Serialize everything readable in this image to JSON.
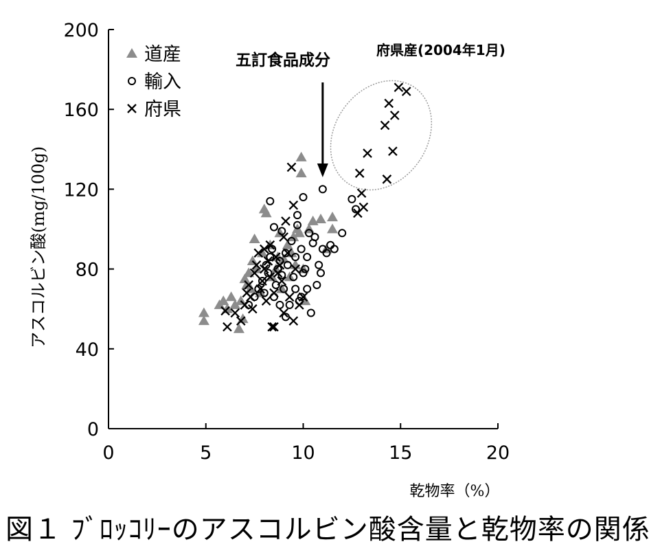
{
  "caption": "図１ ﾌﾞﾛｯｺﾘｰのアスコルビン酸含量と乾物率の関係",
  "annotations": {
    "arrow_label": "五訂食品成分",
    "ellipse_label": "府県産(2004年1月)"
  },
  "colors": {
    "axis": "#000000",
    "hokkaido_marker": "#8c8c8c",
    "import_marker": "#000000",
    "prefecture_marker": "#000000",
    "ellipse": "#999999"
  },
  "chart_data": {
    "type": "scatter",
    "xlabel": "乾物率（%）",
    "ylabel": "アスコルビン酸(mg/100g)",
    "xlim": [
      0,
      20
    ],
    "ylim": [
      0,
      200
    ],
    "xticks": [
      0,
      5,
      10,
      15,
      20
    ],
    "yticks": [
      0,
      40,
      80,
      120,
      160,
      200
    ],
    "grid": false,
    "legend_position": "top-left",
    "annotation_arrow_x": 11,
    "series": [
      {
        "name": "道産",
        "marker": "triangle",
        "points": [
          [
            4.9,
            58
          ],
          [
            4.9,
            54
          ],
          [
            5.7,
            62
          ],
          [
            5.9,
            64
          ],
          [
            6.1,
            60
          ],
          [
            6.3,
            66
          ],
          [
            6.5,
            62
          ],
          [
            6.7,
            50
          ],
          [
            6.9,
            55
          ],
          [
            6.8,
            64
          ],
          [
            7.0,
            75
          ],
          [
            7.1,
            72
          ],
          [
            7.2,
            78
          ],
          [
            7.4,
            84
          ],
          [
            7.5,
            95
          ],
          [
            7.6,
            80
          ],
          [
            7.8,
            68
          ],
          [
            7.9,
            88
          ],
          [
            8.0,
            110
          ],
          [
            8.1,
            108
          ],
          [
            8.3,
            92
          ],
          [
            8.4,
            76
          ],
          [
            8.6,
            80
          ],
          [
            8.8,
            98
          ],
          [
            9.0,
            85
          ],
          [
            9.2,
            92
          ],
          [
            9.4,
            88
          ],
          [
            9.5,
            96
          ],
          [
            9.6,
            82
          ],
          [
            9.7,
            100
          ],
          [
            9.8,
            98
          ],
          [
            9.9,
            136
          ],
          [
            9.9,
            128
          ],
          [
            10.0,
            80
          ],
          [
            10.1,
            64
          ],
          [
            10.3,
            100
          ],
          [
            10.5,
            104
          ],
          [
            10.9,
            105
          ],
          [
            11.2,
            90
          ],
          [
            11.5,
            106
          ],
          [
            11.5,
            100
          ],
          [
            9.3,
            76
          ],
          [
            8.7,
            86
          ],
          [
            7.3,
            70
          ],
          [
            8.9,
            70
          ]
        ]
      },
      {
        "name": "輸入",
        "marker": "circle",
        "points": [
          [
            7.2,
            62
          ],
          [
            7.5,
            66
          ],
          [
            7.7,
            70
          ],
          [
            7.9,
            74
          ],
          [
            8.0,
            68
          ],
          [
            8.1,
            82
          ],
          [
            8.2,
            78
          ],
          [
            8.3,
            86
          ],
          [
            8.4,
            90
          ],
          [
            8.5,
            66
          ],
          [
            8.5,
            101
          ],
          [
            8.6,
            72
          ],
          [
            8.7,
            80
          ],
          [
            8.8,
            84
          ],
          [
            8.9,
            77
          ],
          [
            8.9,
            99
          ],
          [
            9.0,
            70
          ],
          [
            9.1,
            88
          ],
          [
            9.2,
            82
          ],
          [
            9.3,
            62
          ],
          [
            9.4,
            94
          ],
          [
            9.5,
            76
          ],
          [
            9.6,
            70
          ],
          [
            9.6,
            86
          ],
          [
            9.7,
            102
          ],
          [
            9.7,
            107
          ],
          [
            9.8,
            64
          ],
          [
            9.9,
            90
          ],
          [
            10.0,
            116
          ],
          [
            10.0,
            78
          ],
          [
            10.1,
            80
          ],
          [
            10.2,
            86
          ],
          [
            10.2,
            70
          ],
          [
            10.3,
            98
          ],
          [
            10.4,
            58
          ],
          [
            10.5,
            93
          ],
          [
            10.6,
            96
          ],
          [
            10.8,
            82
          ],
          [
            10.9,
            78
          ],
          [
            11.0,
            120
          ],
          [
            11.0,
            90
          ],
          [
            11.2,
            88
          ],
          [
            11.4,
            92
          ],
          [
            11.6,
            90
          ],
          [
            12.0,
            98
          ],
          [
            12.5,
            115
          ],
          [
            12.7,
            110
          ],
          [
            8.8,
            62
          ],
          [
            9.9,
            66
          ],
          [
            10.7,
            72
          ],
          [
            8.3,
            114
          ],
          [
            9.1,
            56
          ]
        ]
      },
      {
        "name": "府県",
        "marker": "cross",
        "points": [
          [
            6.0,
            59
          ],
          [
            6.1,
            51
          ],
          [
            6.5,
            58
          ],
          [
            6.8,
            54
          ],
          [
            7.0,
            62
          ],
          [
            7.2,
            72
          ],
          [
            7.3,
            66
          ],
          [
            7.5,
            78
          ],
          [
            7.6,
            82
          ],
          [
            7.7,
            88
          ],
          [
            7.8,
            70
          ],
          [
            7.9,
            74
          ],
          [
            8.0,
            80
          ],
          [
            8.1,
            64
          ],
          [
            8.2,
            84
          ],
          [
            8.3,
            92
          ],
          [
            8.3,
            76
          ],
          [
            8.4,
            51
          ],
          [
            8.5,
            51
          ],
          [
            8.5,
            68
          ],
          [
            8.6,
            86
          ],
          [
            8.7,
            78
          ],
          [
            8.8,
            82
          ],
          [
            8.9,
            74
          ],
          [
            9.0,
            96
          ],
          [
            9.1,
            104
          ],
          [
            9.2,
            88
          ],
          [
            9.3,
            66
          ],
          [
            9.4,
            131
          ],
          [
            9.5,
            112
          ],
          [
            9.5,
            54
          ],
          [
            9.6,
            80
          ],
          [
            9.8,
            62
          ],
          [
            10.0,
            66
          ],
          [
            12.8,
            108
          ],
          [
            13.0,
            118
          ],
          [
            13.1,
            111
          ],
          [
            12.9,
            128
          ],
          [
            13.3,
            138
          ],
          [
            14.2,
            152
          ],
          [
            14.3,
            125
          ],
          [
            14.4,
            163
          ],
          [
            14.6,
            139
          ],
          [
            14.7,
            157
          ],
          [
            14.9,
            171
          ],
          [
            15.3,
            169
          ],
          [
            7.4,
            60
          ],
          [
            8.0,
            90
          ],
          [
            9.0,
            58
          ],
          [
            7.1,
            68
          ]
        ]
      }
    ]
  }
}
